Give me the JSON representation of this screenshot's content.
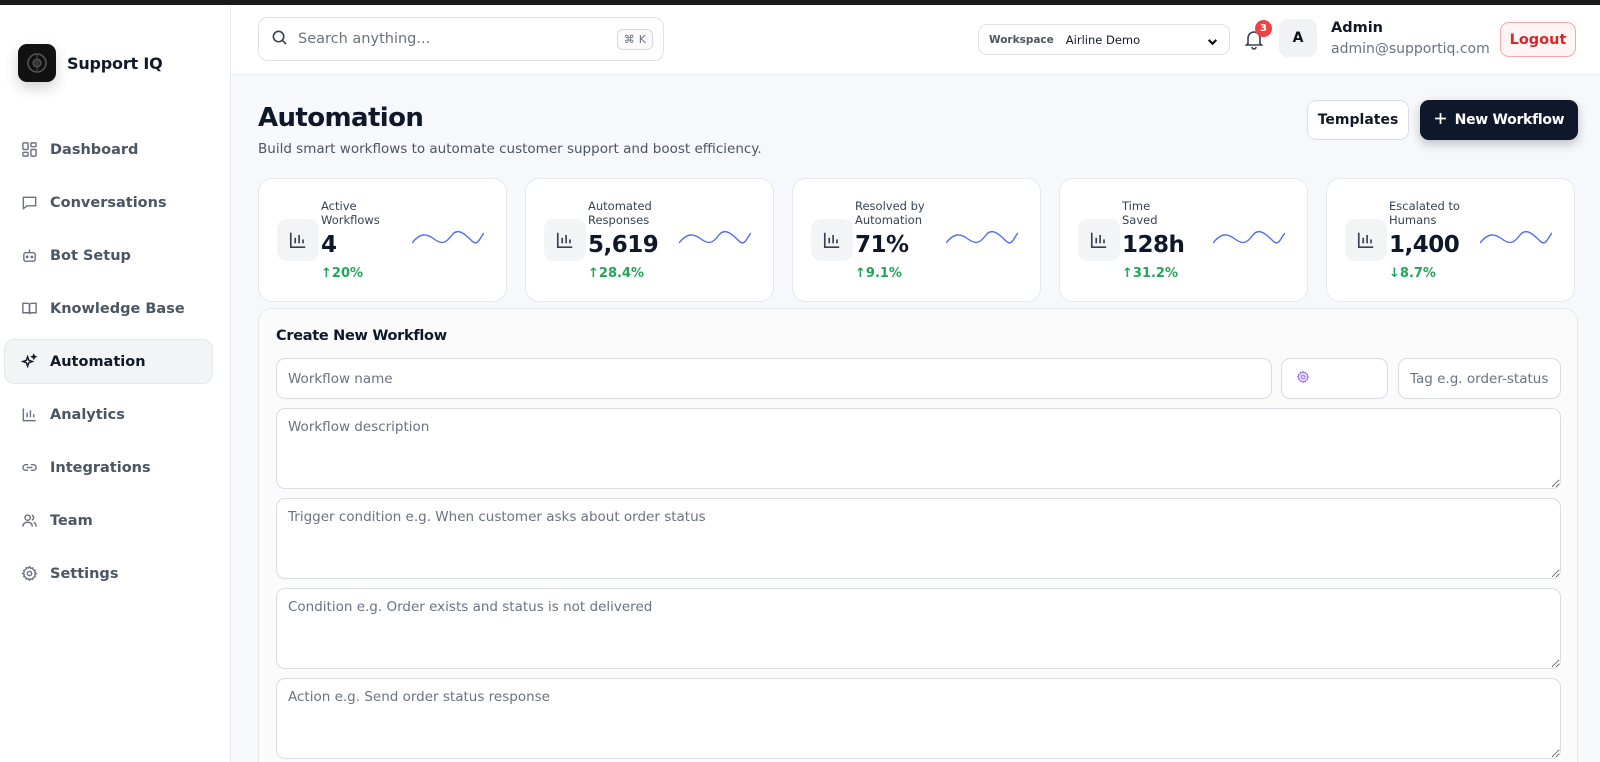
{
  "brand": {
    "name": "Support IQ",
    "logo_icon": "brand-logo-icon"
  },
  "sidebar": {
    "items": [
      {
        "label": "Dashboard",
        "icon": "dashboard-icon",
        "active": false
      },
      {
        "label": "Conversations",
        "icon": "chat-icon",
        "active": false
      },
      {
        "label": "Bot Setup",
        "icon": "bot-icon",
        "active": false
      },
      {
        "label": "Knowledge Base",
        "icon": "book-icon",
        "active": false
      },
      {
        "label": "Automation",
        "icon": "sparkles-icon",
        "active": true
      },
      {
        "label": "Analytics",
        "icon": "bar-chart-icon",
        "active": false
      },
      {
        "label": "Integrations",
        "icon": "link-icon",
        "active": false
      },
      {
        "label": "Team",
        "icon": "users-icon",
        "active": false
      },
      {
        "label": "Settings",
        "icon": "gear-icon",
        "active": false
      }
    ]
  },
  "topbar": {
    "search_placeholder": "Search anything...",
    "search_shortcut_symbol": "⌘",
    "search_shortcut_key": "K",
    "workspace_label": "Workspace",
    "workspace_value": "Airline Demo",
    "notification_count": "3",
    "avatar_initial": "A",
    "user_name": "Admin",
    "user_email": "admin@supportiq.com",
    "logout_label": "Logout"
  },
  "page": {
    "title": "Automation",
    "subtitle": "Build smart workflows to automate customer support and boost efficiency.",
    "templates_label": "Templates",
    "new_workflow_label": "New Workflow"
  },
  "stats": [
    {
      "label": "Active Workflows",
      "value": "4",
      "delta": "20%",
      "direction": "up"
    },
    {
      "label": "Automated Responses",
      "value": "5,619",
      "delta": "28.4%",
      "direction": "up"
    },
    {
      "label": "Resolved by Automation",
      "value": "71%",
      "delta": "9.1%",
      "direction": "up"
    },
    {
      "label": "Time Saved",
      "value": "128h",
      "delta": "31.2%",
      "direction": "up"
    },
    {
      "label": "Escalated to Humans",
      "value": "1,400",
      "delta": "8.7%",
      "direction": "down"
    }
  ],
  "form": {
    "title": "Create New Workflow",
    "name_placeholder": "Workflow name",
    "icon_value": "gear-icon",
    "tag_placeholder": "Tag e.g. order-status",
    "description_placeholder": "Workflow description",
    "trigger_placeholder": "Trigger condition e.g. When customer asks about order status",
    "condition_placeholder": "Condition e.g. Order exists and status is not delivered",
    "action_placeholder": "Action e.g. Send order status response"
  },
  "colors": {
    "accent_dark": "#0f172a",
    "positive": "#22a55a",
    "danger": "#dc2626",
    "sparkline": "#4f6ef7"
  }
}
